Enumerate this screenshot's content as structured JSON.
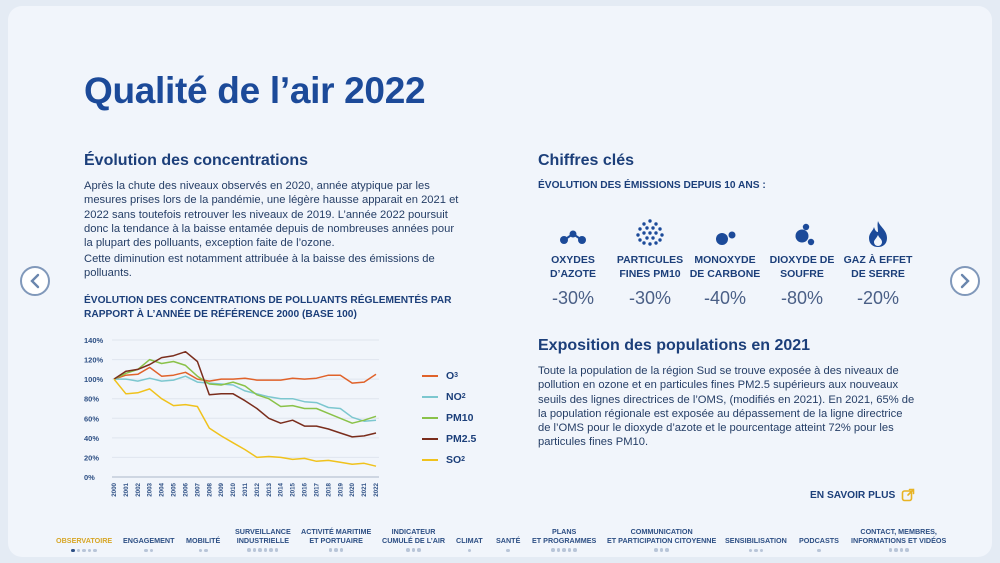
{
  "page": {
    "title": "Qualité de l’air 2022"
  },
  "nav": {
    "prev": "‹",
    "next": "›"
  },
  "left": {
    "heading": "Évolution des concentrations",
    "para1": "Après la chute des niveaux observés en 2020, année atypique par les mesures prises lors de la pandémie, une légère hausse apparait en 2021 et 2022 sans toutefois retrouver les niveaux de 2019. L’année 2022 poursuit donc la tendance à la baisse entamée depuis de nombreuses années pour la plupart des polluants, exception faite de l’ozone.",
    "para2": "Cette diminution est notamment attribuée à la baisse des émissions de polluants.",
    "chart_title": "ÉVOLUTION DES CONCENTRATIONS DE POLLUANTS RÉGLEMENTÉS PAR RAPPORT À L’ANNÉE DE RÉFÉRENCE 2000 (BASE 100)"
  },
  "chart_data": {
    "type": "line",
    "title": "ÉVOLUTION DES CONCENTRATIONS DE POLLUANTS RÉGLEMENTÉS PAR RAPPORT À L’ANNÉE DE RÉFÉRENCE 2000 (BASE 100)",
    "x": [
      "2000",
      "2001",
      "2002",
      "2003",
      "2004",
      "2005",
      "2006",
      "2007",
      "2008",
      "2009",
      "2010",
      "2011",
      "2012",
      "2013",
      "2014",
      "2015",
      "2016",
      "2017",
      "2018",
      "2019",
      "2020",
      "2021",
      "2022"
    ],
    "yticks": [
      "0%",
      "20%",
      "40%",
      "60%",
      "80%",
      "100%",
      "120%",
      "140%"
    ],
    "ylim": [
      0,
      140
    ],
    "xlabel": "",
    "ylabel": "",
    "series": [
      {
        "name": "O3",
        "label": "O",
        "sub": "3",
        "color": "#e0622a",
        "values": [
          100,
          104,
          105,
          112,
          103,
          104,
          107,
          100,
          98,
          100,
          100,
          101,
          99,
          99,
          99,
          101,
          100,
          101,
          104,
          104,
          96,
          97,
          105
        ]
      },
      {
        "name": "NO2",
        "label": "NO",
        "sub": "2",
        "color": "#7cc7cf",
        "values": [
          100,
          100,
          98,
          101,
          98,
          99,
          103,
          97,
          96,
          95,
          94,
          88,
          85,
          82,
          80,
          80,
          77,
          76,
          71,
          70,
          61,
          57,
          58
        ]
      },
      {
        "name": "PM10",
        "label": "PM10",
        "sub": "",
        "color": "#8ac249",
        "values": [
          100,
          106,
          110,
          120,
          116,
          118,
          114,
          103,
          95,
          94,
          97,
          93,
          84,
          80,
          72,
          73,
          70,
          70,
          65,
          60,
          55,
          58,
          62
        ]
      },
      {
        "name": "PM2.5",
        "label": "PM2.5",
        "sub": "",
        "color": "#7a2d1c",
        "values": [
          100,
          108,
          110,
          115,
          122,
          124,
          128,
          118,
          84,
          85,
          85,
          78,
          70,
          60,
          55,
          58,
          52,
          52,
          49,
          45,
          41,
          42,
          45
        ]
      },
      {
        "name": "SO2",
        "label": "SO",
        "sub": "2",
        "color": "#f0c21c",
        "values": [
          100,
          85,
          86,
          90,
          80,
          73,
          74,
          72,
          50,
          42,
          35,
          28,
          20,
          21,
          20,
          18,
          19,
          16,
          17,
          15,
          13,
          14,
          11
        ]
      }
    ]
  },
  "right": {
    "heading": "Chiffres clés",
    "subheading": "ÉVOLUTION DES ÉMISSIONS DEPUIS 10 ANS :",
    "metrics": [
      {
        "label1": "OXYDES",
        "label2": "D’AZOTE",
        "value": "-30%"
      },
      {
        "label1": "PARTICULES",
        "label2": "FINES PM10",
        "value": "-30%"
      },
      {
        "label1": "MONOXYDE",
        "label2": "DE CARBONE",
        "value": "-40%"
      },
      {
        "label1": "DIOXYDE DE",
        "label2": "SOUFRE",
        "value": "-80%"
      },
      {
        "label1": "GAZ À EFFET",
        "label2": "DE SERRE",
        "value": "-20%"
      }
    ],
    "expo_heading": "Exposition des populations en 2021",
    "expo_text": "Toute la population de la région Sud se trouve exposée à des niveaux de pollution en ozone et en particules fines PM2.5 supérieurs aux nouveaux seuils des lignes directrices de l’OMS, (modifiés en 2021). En 2021, 65% de la population régionale est exposée au dépassement de la ligne directrice de l’OMS pour le dioxyde d’azote et le pourcentage atteint 72% pour les particules fines PM10.",
    "more_link": "EN SAVOIR PLUS"
  },
  "footer": {
    "items": [
      {
        "l1": "OBSERVATOIRE",
        "l2": ""
      },
      {
        "l1": "ENGAGEMENT",
        "l2": ""
      },
      {
        "l1": "MOBILITÉ",
        "l2": ""
      },
      {
        "l1": "SURVEILLANCE",
        "l2": "INDUSTRIELLE"
      },
      {
        "l1": "ACTIVITÉ MARITIME",
        "l2": "ET PORTUAIRE"
      },
      {
        "l1": "INDICATEUR",
        "l2": "CUMULÉ DE L’AIR"
      },
      {
        "l1": "CLIMAT",
        "l2": ""
      },
      {
        "l1": "SANTÉ",
        "l2": ""
      },
      {
        "l1": "PLANS",
        "l2": "ET PROGRAMMES"
      },
      {
        "l1": "COMMUNICATION",
        "l2": "ET PARTICIPATION CITOYENNE"
      },
      {
        "l1": "SENSIBILISATION",
        "l2": ""
      },
      {
        "l1": "PODCASTS",
        "l2": ""
      },
      {
        "l1": "CONTACT, MEMBRES,",
        "l2": "INFORMATIONS ET VIDÉOS"
      }
    ],
    "colors": {
      "active": "#d7a626",
      "normal": "#2d4f84"
    }
  }
}
